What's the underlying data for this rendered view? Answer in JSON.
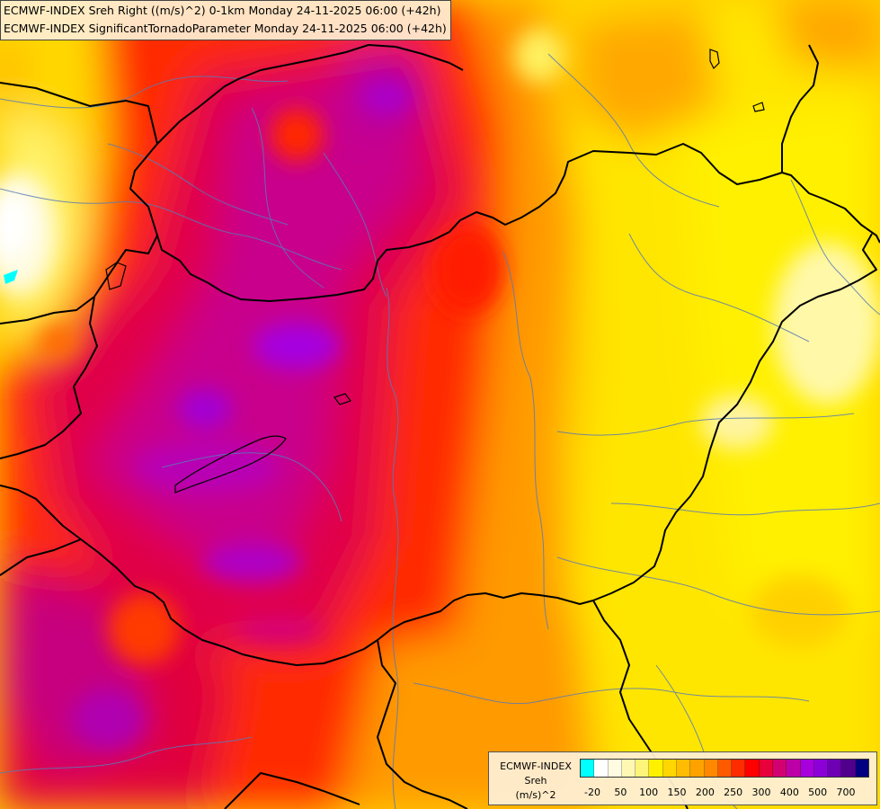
{
  "title": {
    "line1": "ECMWF-INDEX Sreh Right ((m/s)^2) 0-1km Monday 24-11-2025 06:00 (+42h)",
    "line2": "ECMWF-INDEX SignificantTornadoParameter Monday 24-11-2025 06:00 (+42h)"
  },
  "legend": {
    "model": "ECMWF-INDEX",
    "variable": "Sreh",
    "unit": "(m/s)^2",
    "colors": [
      "#00ffff",
      "#ffffff",
      "#fffbe0",
      "#fff8b4",
      "#fff47a",
      "#fff000",
      "#ffd600",
      "#ffbc00",
      "#ffa200",
      "#ff8800",
      "#ff5a00",
      "#ff2c00",
      "#ff0000",
      "#e8003a",
      "#d20070",
      "#bc00a6",
      "#a600dc",
      "#8c00d8",
      "#6e00b4",
      "#50008c",
      "#000080"
    ],
    "tick_labels": [
      "-20",
      "50",
      "100",
      "150",
      "200",
      "250",
      "300",
      "400",
      "500",
      "700"
    ]
  }
}
